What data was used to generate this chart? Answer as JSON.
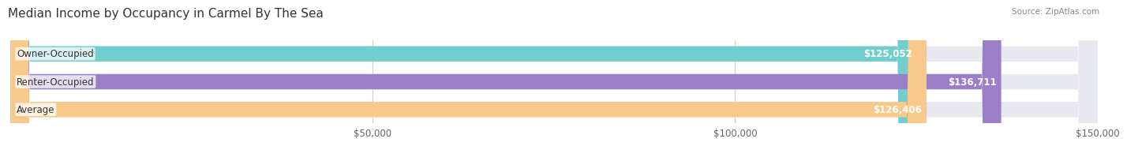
{
  "title": "Median Income by Occupancy in Carmel By The Sea",
  "source": "Source: ZipAtlas.com",
  "categories": [
    "Owner-Occupied",
    "Renter-Occupied",
    "Average"
  ],
  "values": [
    125052,
    136711,
    126406
  ],
  "bar_colors": [
    "#72cece",
    "#9b7ec8",
    "#f8c98a"
  ],
  "bar_bg_color": "#e8e8f0",
  "value_labels": [
    "$125,052",
    "$136,711",
    "$126,406"
  ],
  "xlim": [
    0,
    150000
  ],
  "xticks": [
    50000,
    100000,
    150000
  ],
  "xticklabels": [
    "$50,000",
    "$100,000",
    "$150,000"
  ],
  "title_fontsize": 11,
  "label_fontsize": 8.5,
  "value_fontsize": 8.5,
  "tick_fontsize": 8.5,
  "background_color": "#ffffff",
  "bar_height": 0.55
}
